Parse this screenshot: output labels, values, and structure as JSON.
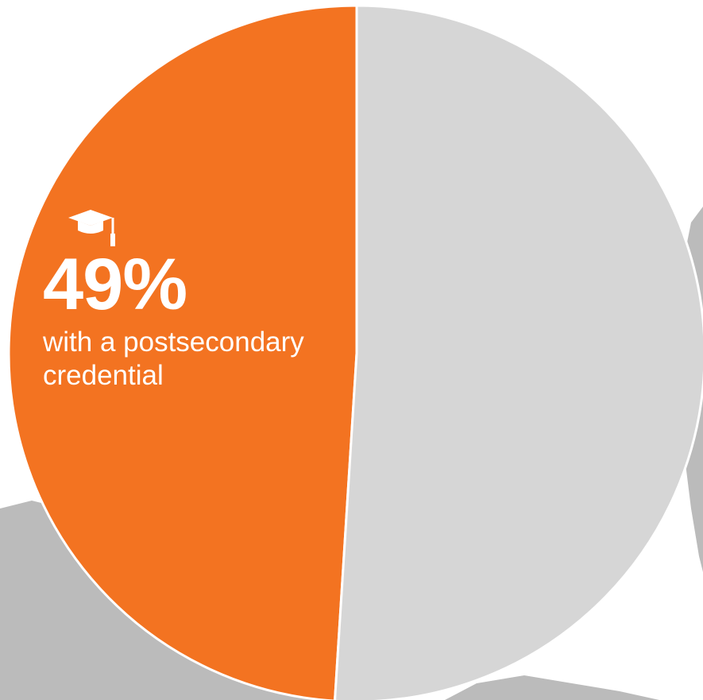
{
  "chart_data": {
    "type": "pie",
    "categories": [
      "with a postsecondary credential",
      ""
    ],
    "values": [
      49,
      51
    ],
    "colors": [
      "#F37321",
      "#D6D6D6"
    ],
    "value_label": "49%",
    "caption": "with a postsecondary credential",
    "icon": "graduation-cap-icon",
    "background_color": "#BBBBBB"
  }
}
